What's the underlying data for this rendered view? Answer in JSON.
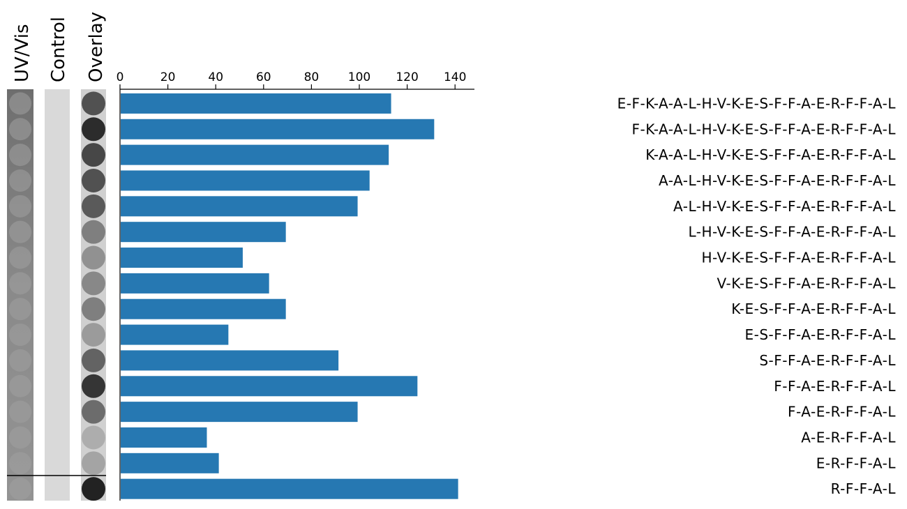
{
  "strips": {
    "labels": [
      "UV/Vis",
      "Control",
      "Overlay"
    ]
  },
  "chart_data": {
    "type": "bar",
    "orientation": "horizontal",
    "title": "",
    "xlabel": "",
    "ylabel": "",
    "xlim": [
      0,
      150
    ],
    "xticks": [
      0,
      20,
      40,
      60,
      80,
      100,
      120,
      140
    ],
    "x_axis_position": "top",
    "grid": false,
    "bar_color": "#2678b2",
    "categories": [
      "E-F-K-A-A-L-H-V-K-E-S-F-F-A-E-R-F-F-A-L",
      "F-K-A-A-L-H-V-K-E-S-F-F-A-E-R-F-F-A-L",
      "K-A-A-L-H-V-K-E-S-F-F-A-E-R-F-F-A-L",
      "A-A-L-H-V-K-E-S-F-F-A-E-R-F-F-A-L",
      "A-L-H-V-K-E-S-F-F-A-E-R-F-F-A-L",
      "L-H-V-K-E-S-F-F-A-E-R-F-F-A-L",
      "H-V-K-E-S-F-F-A-E-R-F-F-A-L",
      "V-K-E-S-F-F-A-E-R-F-F-A-L",
      "K-E-S-F-F-A-E-R-F-F-A-L",
      "E-S-F-F-A-E-R-F-F-A-L",
      "S-F-F-A-E-R-F-F-A-L",
      "F-F-A-E-R-F-F-A-L",
      "F-A-E-R-F-F-A-L",
      "A-E-R-F-F-A-L",
      "E-R-F-F-A-L",
      "R-F-F-A-L"
    ],
    "values": [
      113,
      131,
      112,
      104,
      99,
      69,
      51,
      62,
      69,
      45,
      91,
      124,
      99,
      36,
      41,
      141
    ],
    "overlay_intensity": [
      0.7,
      0.9,
      0.75,
      0.7,
      0.65,
      0.45,
      0.35,
      0.4,
      0.45,
      0.3,
      0.6,
      0.85,
      0.55,
      0.2,
      0.25,
      0.95
    ]
  }
}
